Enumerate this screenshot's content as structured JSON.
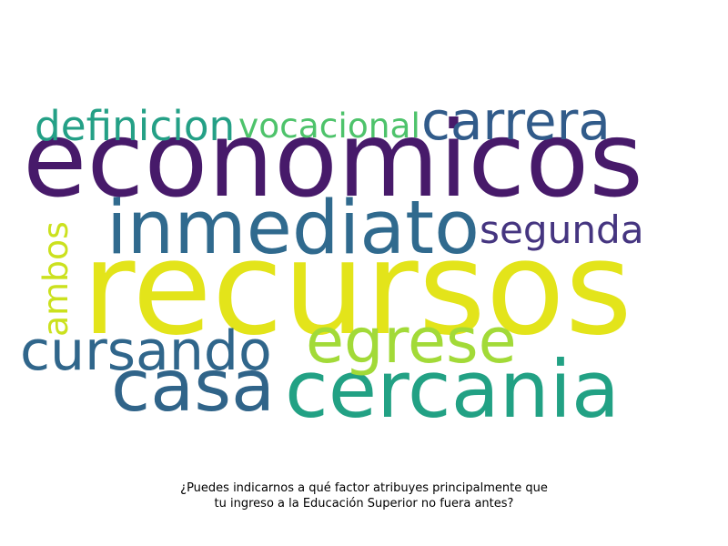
{
  "words": [
    {
      "text": "recursos",
      "color": "#e3e41a"
    },
    {
      "text": "economicos",
      "color": "#471a6a"
    },
    {
      "text": "inmediato",
      "color": "#306a8e"
    },
    {
      "text": "cercania",
      "color": "#22a184"
    },
    {
      "text": "casa",
      "color": "#306489"
    },
    {
      "text": "cursando",
      "color": "#30668b"
    },
    {
      "text": "egrese",
      "color": "#a2da38"
    },
    {
      "text": "carrera",
      "color": "#315b8a"
    },
    {
      "text": "segunda",
      "color": "#453580"
    },
    {
      "text": "definicion",
      "color": "#24a086"
    },
    {
      "text": "vocacional",
      "color": "#4ec36b"
    },
    {
      "text": "ambos",
      "color": "#cbe11e"
    }
  ],
  "caption": {
    "line1": "¿Puedes indicarnos a qué factor atribuyes principalmente que",
    "line2": "tu ingreso a la Educación Superior no fuera antes?"
  }
}
